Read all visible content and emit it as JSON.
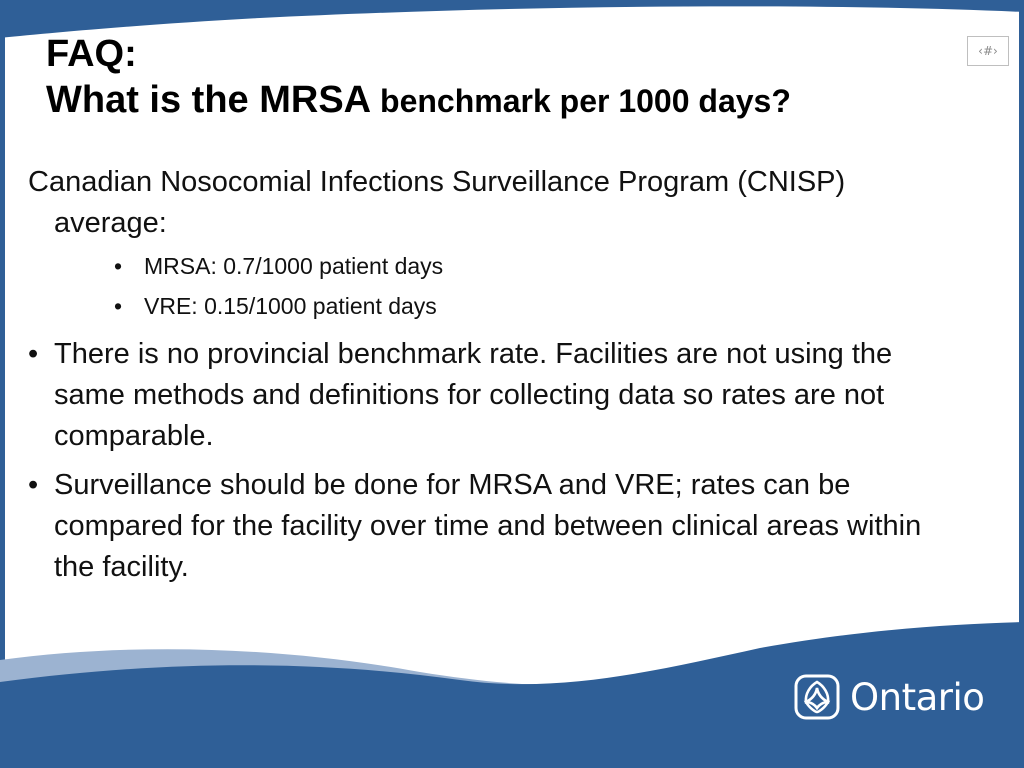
{
  "slide": {
    "title_line1": "FAQ:",
    "title_line2_large": "What is the MRSA",
    "title_line2_small": " benchmark per 1000 days?",
    "slide_number": "‹#›"
  },
  "content": {
    "intro": "Canadian Nosocomial Infections Surveillance Program (CNISP) average:",
    "sub_items": [
      "MRSA: 0.7/1000 patient days",
      "VRE: 0.15/1000 patient days"
    ],
    "bullets": [
      "There is no provincial benchmark rate. Facilities are not using the same methods and definitions for collecting data so rates are not comparable.",
      "Surveillance should be done for MRSA and VRE; rates can be compared for the facility over time and between clinical areas within the facility."
    ],
    "bullet_char": "•"
  },
  "logo": {
    "text": "Ontario",
    "icon": "ontario-trillium-icon"
  },
  "colors": {
    "primary_blue": "#2f5f97",
    "light_blue": "#9cb3d1",
    "text": "#111111"
  }
}
